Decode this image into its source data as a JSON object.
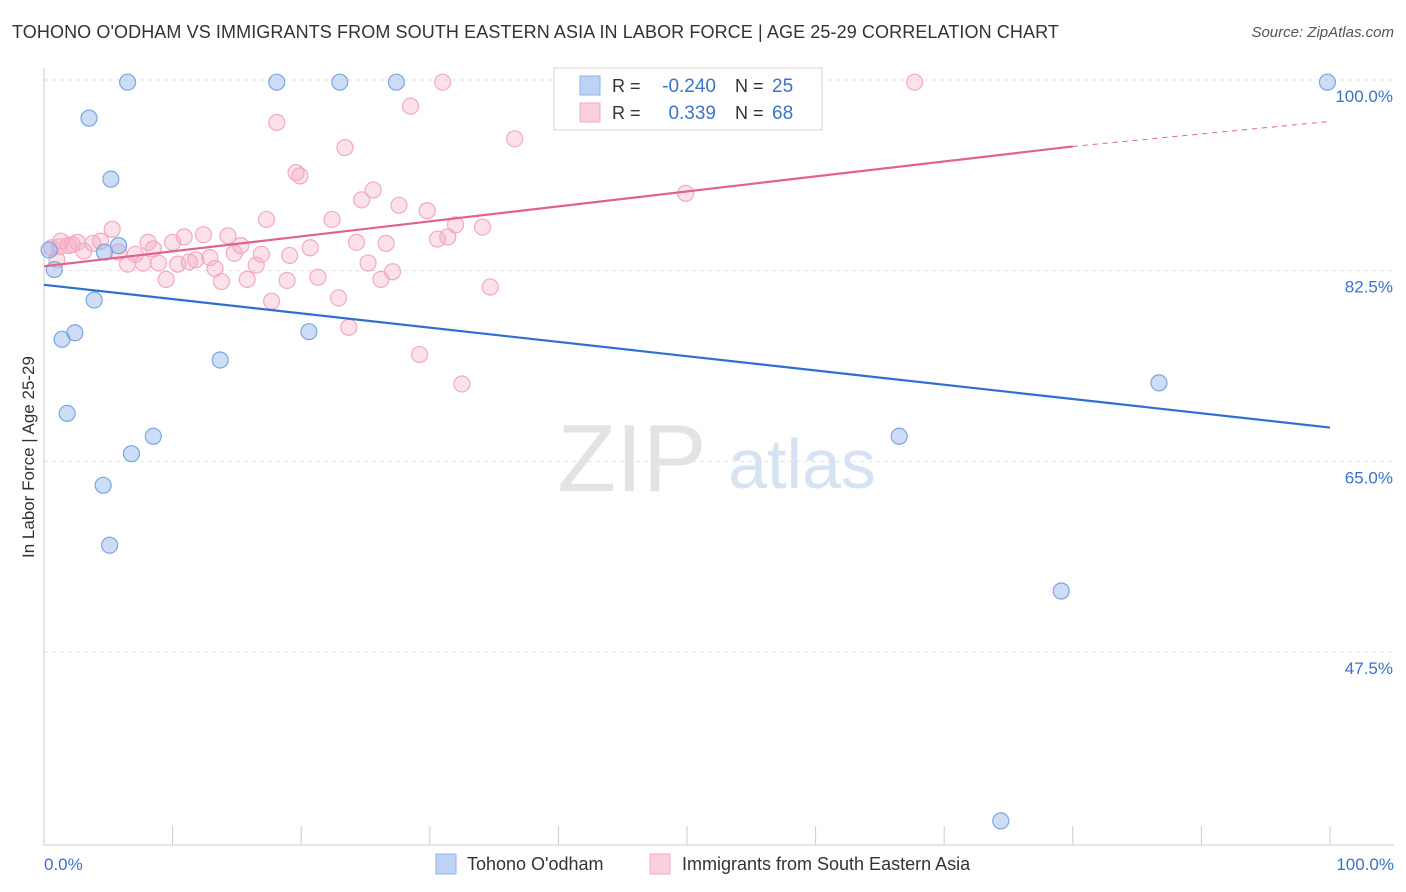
{
  "title": "TOHONO O'ODHAM VS IMMIGRANTS FROM SOUTH EASTERN ASIA IN LABOR FORCE | AGE 25-29 CORRELATION CHART",
  "source": "Source: ZipAtlas.com",
  "watermark": {
    "zip": "ZIP",
    "atlas": "atlas"
  },
  "chart_data": {
    "type": "scatter",
    "xlabel": "",
    "ylabel": "In Labor Force | Age 25-29",
    "xlim": [
      0,
      100
    ],
    "ylim": [
      30,
      102
    ],
    "x_tick_labels": [
      "0.0%",
      "100.0%"
    ],
    "y_ticks": [
      47.5,
      65.0,
      82.5,
      100.0
    ],
    "y_tick_labels": [
      "47.5%",
      "65.0%",
      "82.5%",
      "100.0%"
    ],
    "grid": true,
    "legend_position": "top-center",
    "stats": [
      {
        "r_label": "R =",
        "r_value": "-0.240",
        "n_label": "N =",
        "n_value": "25"
      },
      {
        "r_label": "R =",
        "r_value": "0.339",
        "n_label": "N =",
        "n_value": "68"
      }
    ],
    "series": [
      {
        "name": "Tohono O'odham",
        "color": "#8fb4e8",
        "line_color": "#2f6fd0",
        "trend": {
          "x": [
            0,
            100
          ],
          "y": [
            81.2,
            68.1
          ]
        },
        "points": [
          [
            0.4,
            84.4
          ],
          [
            0.8,
            82.6
          ],
          [
            1.4,
            76.2
          ],
          [
            1.8,
            69.4
          ],
          [
            2.4,
            76.8
          ],
          [
            3.5,
            96.5
          ],
          [
            3.9,
            79.8
          ],
          [
            4.7,
            84.2
          ],
          [
            4.6,
            62.8
          ],
          [
            5.2,
            90.9
          ],
          [
            5.1,
            57.3
          ],
          [
            5.8,
            84.8
          ],
          [
            6.5,
            99.8
          ],
          [
            6.8,
            65.7
          ],
          [
            8.5,
            67.3
          ],
          [
            13.7,
            74.3
          ],
          [
            18.1,
            99.8
          ],
          [
            20.6,
            76.9
          ],
          [
            23.0,
            99.8
          ],
          [
            27.4,
            99.8
          ],
          [
            66.5,
            67.3
          ],
          [
            79.1,
            53.1
          ],
          [
            86.7,
            72.2
          ],
          [
            99.8,
            99.8
          ],
          [
            74.4,
            32.0
          ]
        ]
      },
      {
        "name": "Immigrants from South Eastern Asia",
        "color": "#f4a9c0",
        "line_color": "#e0638c",
        "trend": {
          "x": [
            0,
            80
          ],
          "y": [
            82.9,
            93.9
          ]
        },
        "trend_dashed": {
          "x": [
            80,
            100
          ],
          "y": [
            93.9,
            96.2
          ]
        },
        "points": [
          [
            0.6,
            84.6
          ],
          [
            1.0,
            83.5
          ],
          [
            1.3,
            85.2
          ],
          [
            1.9,
            84.8
          ],
          [
            2.6,
            85.1
          ],
          [
            3.1,
            84.3
          ],
          [
            3.8,
            85.0
          ],
          [
            4.4,
            85.2
          ],
          [
            5.3,
            86.3
          ],
          [
            5.8,
            84.2
          ],
          [
            6.5,
            83.1
          ],
          [
            7.1,
            84.0
          ],
          [
            7.7,
            83.2
          ],
          [
            8.1,
            85.1
          ],
          [
            8.5,
            84.5
          ],
          [
            8.9,
            83.2
          ],
          [
            9.5,
            81.7
          ],
          [
            10.0,
            85.1
          ],
          [
            10.4,
            83.1
          ],
          [
            10.9,
            85.6
          ],
          [
            11.3,
            83.3
          ],
          [
            11.8,
            83.5
          ],
          [
            12.4,
            85.8
          ],
          [
            12.9,
            83.7
          ],
          [
            13.3,
            82.7
          ],
          [
            13.8,
            81.5
          ],
          [
            14.3,
            85.7
          ],
          [
            14.8,
            84.1
          ],
          [
            15.3,
            84.8
          ],
          [
            15.8,
            81.7
          ],
          [
            16.5,
            83.0
          ],
          [
            16.9,
            84.0
          ],
          [
            17.3,
            87.2
          ],
          [
            17.7,
            79.7
          ],
          [
            18.1,
            96.1
          ],
          [
            18.9,
            81.6
          ],
          [
            19.1,
            83.9
          ],
          [
            19.6,
            91.5
          ],
          [
            19.9,
            91.2
          ],
          [
            20.7,
            84.6
          ],
          [
            21.3,
            81.9
          ],
          [
            22.4,
            87.2
          ],
          [
            22.9,
            80.0
          ],
          [
            23.4,
            93.8
          ],
          [
            23.7,
            77.3
          ],
          [
            24.3,
            85.1
          ],
          [
            24.7,
            89.0
          ],
          [
            25.2,
            83.2
          ],
          [
            25.6,
            89.9
          ],
          [
            26.2,
            81.7
          ],
          [
            26.6,
            85.0
          ],
          [
            27.1,
            82.4
          ],
          [
            27.6,
            88.5
          ],
          [
            28.5,
            97.6
          ],
          [
            29.2,
            74.8
          ],
          [
            29.8,
            88.0
          ],
          [
            30.6,
            85.4
          ],
          [
            31.0,
            99.8
          ],
          [
            31.4,
            85.6
          ],
          [
            32.0,
            86.7
          ],
          [
            32.5,
            72.1
          ],
          [
            34.1,
            86.5
          ],
          [
            34.7,
            81.0
          ],
          [
            36.6,
            94.6
          ],
          [
            49.9,
            89.6
          ],
          [
            67.7,
            99.8
          ],
          [
            1.2,
            84.7
          ],
          [
            2.2,
            84.9
          ]
        ]
      }
    ]
  }
}
